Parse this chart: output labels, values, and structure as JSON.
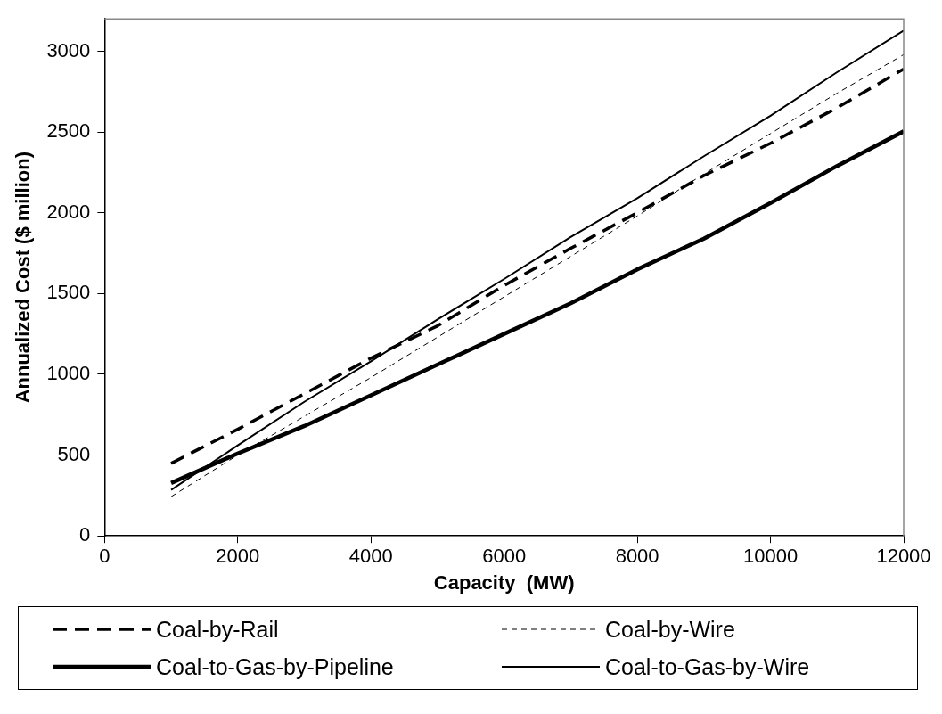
{
  "chart_data": {
    "type": "line",
    "xlabel": "Capacity  (MW)",
    "ylabel": "Annualized Cost ($ million)",
    "x": [
      1000,
      2000,
      3000,
      4000,
      5000,
      6000,
      7000,
      8000,
      9000,
      10000,
      11000,
      12000
    ],
    "xlim": [
      0,
      12000
    ],
    "xticks": [
      0,
      2000,
      4000,
      6000,
      8000,
      10000,
      12000
    ],
    "ylim": [
      0,
      3200
    ],
    "yticks": [
      0,
      500,
      1000,
      1500,
      2000,
      2500,
      3000
    ],
    "grid": false,
    "legend": "bottom",
    "marker": "none",
    "series": [
      {
        "name": "Coal-by-Rail",
        "color": "#000000",
        "line_style": "dashed",
        "values": [
          449,
          660,
          880,
          1100,
          1300,
          1550,
          1780,
          2000,
          2230,
          2430,
          2650,
          2890
        ]
      },
      {
        "name": "Coal-by-Wire",
        "color": "#000000",
        "line_style": "dashed",
        "values": [
          243,
          500,
          740,
          980,
          1230,
          1480,
          1730,
          1980,
          2240,
          2490,
          2740,
          2979
        ]
      },
      {
        "name": "Coal-to-Gas-by-Pipeline",
        "color": "#000000",
        "line_style": "solid",
        "values": [
          327,
          510,
          680,
          870,
          1060,
          1250,
          1440,
          1650,
          1840,
          2060,
          2290,
          2504
        ]
      },
      {
        "name": "Coal-to-Gas-by-Wire",
        "color": "#000000",
        "line_style": "solid",
        "values": [
          285,
          560,
          830,
          1080,
          1340,
          1590,
          1850,
          2090,
          2350,
          2600,
          2870,
          3127
        ]
      }
    ]
  }
}
